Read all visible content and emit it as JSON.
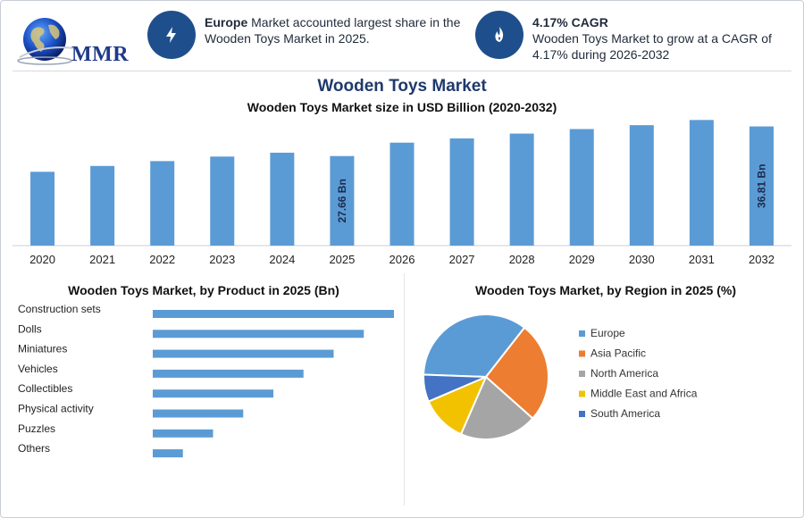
{
  "brand": {
    "logo_text": "MMR"
  },
  "highlights": [
    {
      "icon": "lightning-icon",
      "bold": "Europe",
      "text": " Market accounted largest share in the Wooden Toys Market in 2025."
    },
    {
      "icon": "growth-flame-icon",
      "bold": "4.17% CAGR",
      "text": "Wooden Toys Market to grow at a CAGR of 4.17% during 2026-2032"
    }
  ],
  "titles": {
    "main": "Wooden Toys Market",
    "sub": "Wooden Toys Market size in USD Billion (2020-2032)",
    "product": "Wooden Toys Market, by Product in 2025 (Bn)",
    "region": "Wooden Toys Market, by Region in 2025 (%)"
  },
  "colors": {
    "bar": "#5b9bd5",
    "europe": "#5b9bd5",
    "asia_pacific": "#ed7d31",
    "north_america": "#a5a5a5",
    "mea": "#f2c200",
    "south_america": "#4472c4"
  },
  "chart_data": [
    {
      "type": "bar",
      "title": "Wooden Toys Market size in USD Billion (2020-2032)",
      "categories": [
        "2020",
        "2021",
        "2022",
        "2023",
        "2024",
        "2025",
        "2026",
        "2027",
        "2028",
        "2029",
        "2030",
        "2031",
        "2032"
      ],
      "values": [
        22.8,
        24.6,
        26.1,
        27.5,
        28.7,
        27.66,
        31.8,
        33.1,
        34.6,
        36.0,
        37.2,
        38.8,
        36.81
      ],
      "data_labels": {
        "2025": "27.66 Bn",
        "2032": "36.81 Bn"
      },
      "ylim": [
        0,
        40
      ],
      "grid": false
    },
    {
      "type": "bar",
      "orientation": "horizontal",
      "title": "Wooden Toys Market, by Product in 2025 (Bn)",
      "categories": [
        "Construction sets",
        "Dolls",
        "Miniatures",
        "Vehicles",
        "Collectibles",
        "Physical activity",
        "Puzzles",
        "Others"
      ],
      "values": [
        8,
        7,
        6,
        5,
        4,
        3,
        2,
        1
      ],
      "xlim": [
        0,
        8
      ]
    },
    {
      "type": "pie",
      "title": "Wooden Toys Market, by Region in 2025 (%)",
      "categories": [
        "Europe",
        "Asia Pacific",
        "North America",
        "Middle East and Africa",
        "South America"
      ],
      "values": [
        35,
        26,
        20,
        12,
        7
      ],
      "legend": "right"
    }
  ]
}
